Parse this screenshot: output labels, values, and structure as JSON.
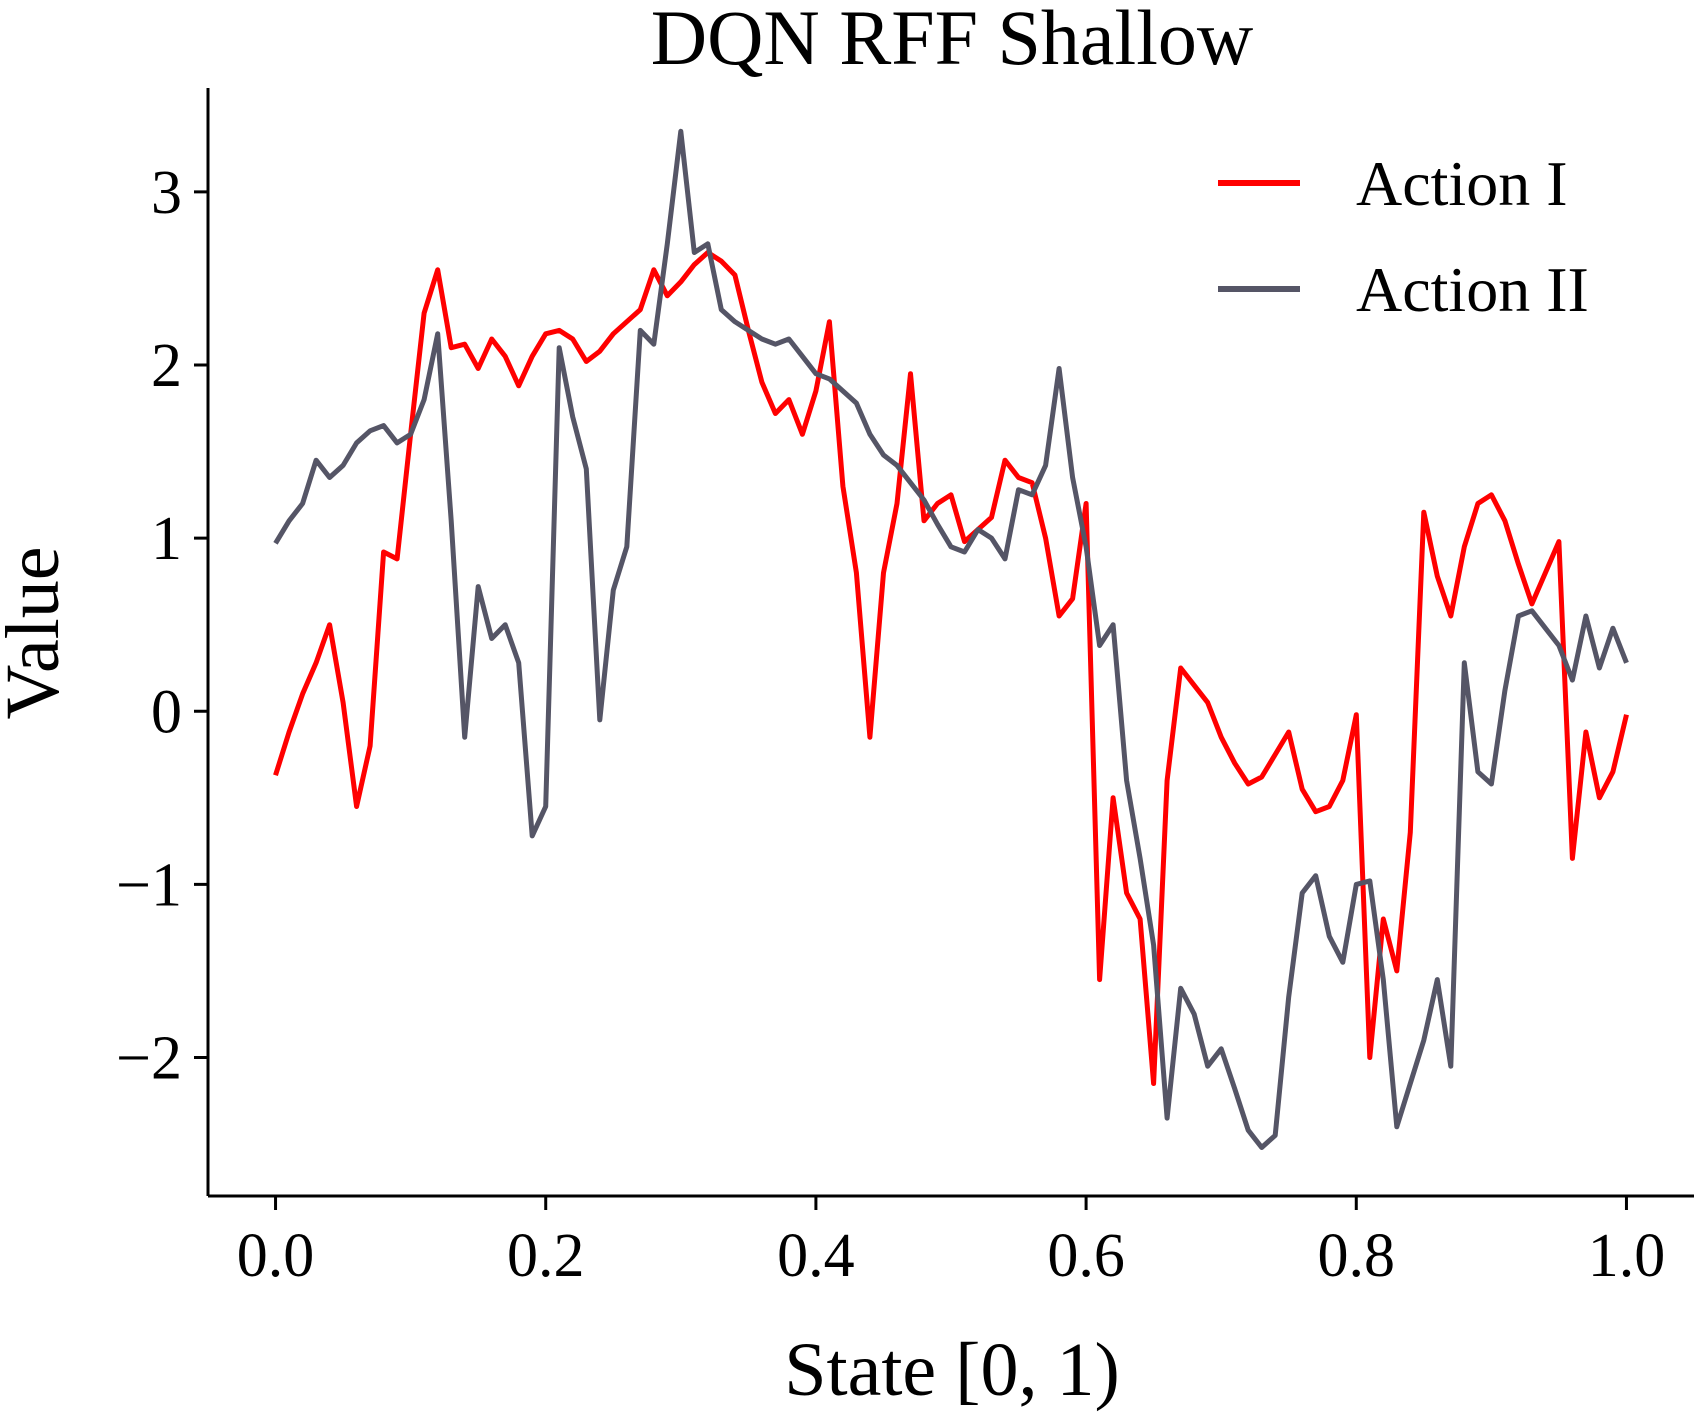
{
  "chart_data": {
    "type": "line",
    "title": "DQN RFF Shallow",
    "xlabel": "State [0, 1)",
    "ylabel": "Value",
    "xlim": [
      -0.05,
      1.05
    ],
    "ylim": [
      -2.8,
      3.6
    ],
    "x_ticks": [
      0.0,
      0.2,
      0.4,
      0.6,
      0.8,
      1.0
    ],
    "x_tick_labels": [
      "0.0",
      "0.2",
      "0.4",
      "0.6",
      "0.8",
      "1.0"
    ],
    "y_ticks": [
      -2,
      -1,
      0,
      1,
      2,
      3
    ],
    "y_tick_labels": [
      "−2",
      "−1",
      "0",
      "1",
      "2",
      "3"
    ],
    "grid": false,
    "legend_position": "top-right",
    "x": [
      0.0,
      0.01,
      0.02,
      0.03,
      0.04,
      0.05,
      0.06,
      0.07,
      0.08,
      0.09,
      0.1,
      0.11,
      0.12,
      0.13,
      0.14,
      0.15,
      0.16,
      0.17,
      0.18,
      0.19,
      0.2,
      0.21,
      0.22,
      0.23,
      0.24,
      0.25,
      0.26,
      0.27,
      0.28,
      0.29,
      0.3,
      0.31,
      0.32,
      0.33,
      0.34,
      0.35,
      0.36,
      0.37,
      0.38,
      0.39,
      0.4,
      0.41,
      0.42,
      0.43,
      0.44,
      0.45,
      0.46,
      0.47,
      0.48,
      0.49,
      0.5,
      0.51,
      0.52,
      0.53,
      0.54,
      0.55,
      0.56,
      0.57,
      0.58,
      0.59,
      0.6,
      0.61,
      0.62,
      0.63,
      0.64,
      0.65,
      0.66,
      0.67,
      0.68,
      0.69,
      0.7,
      0.71,
      0.72,
      0.73,
      0.74,
      0.75,
      0.76,
      0.77,
      0.78,
      0.79,
      0.8,
      0.81,
      0.82,
      0.83,
      0.84,
      0.85,
      0.86,
      0.87,
      0.88,
      0.89,
      0.9,
      0.91,
      0.92,
      0.93,
      0.94,
      0.95,
      0.96,
      0.97,
      0.98,
      0.99,
      1.0
    ],
    "series": [
      {
        "name": "Action I",
        "color": "#ff0000",
        "values": [
          -0.37,
          -0.12,
          0.1,
          0.28,
          0.5,
          0.05,
          -0.55,
          -0.2,
          0.92,
          0.88,
          1.6,
          2.3,
          2.55,
          2.1,
          2.12,
          1.98,
          2.15,
          2.05,
          1.88,
          2.05,
          2.18,
          2.2,
          2.15,
          2.02,
          2.08,
          2.18,
          2.25,
          2.32,
          2.55,
          2.4,
          2.48,
          2.58,
          2.65,
          2.6,
          2.52,
          2.2,
          1.9,
          1.72,
          1.8,
          1.6,
          1.85,
          2.25,
          1.3,
          0.8,
          -0.15,
          0.8,
          1.2,
          1.95,
          1.1,
          1.2,
          1.25,
          0.98,
          1.05,
          1.12,
          1.45,
          1.35,
          1.32,
          1.0,
          0.55,
          0.65,
          1.2,
          -1.55,
          -0.5,
          -1.05,
          -1.2,
          -2.15,
          -0.4,
          0.25,
          0.15,
          0.05,
          -0.15,
          -0.3,
          -0.42,
          -0.38,
          -0.25,
          -0.12,
          -0.45,
          -0.58,
          -0.55,
          -0.4,
          -0.02,
          -2.0,
          -1.2,
          -1.5,
          -0.7,
          1.15,
          0.78,
          0.55,
          0.95,
          1.2,
          1.25,
          1.1,
          0.85,
          0.62,
          0.8,
          0.98,
          -0.85,
          -0.12,
          -0.5,
          -0.35,
          -0.02
        ]
      },
      {
        "name": "Action II",
        "color": "#555566",
        "values": [
          0.97,
          1.1,
          1.2,
          1.45,
          1.35,
          1.42,
          1.55,
          1.62,
          1.65,
          1.55,
          1.6,
          1.8,
          2.18,
          1.1,
          -0.15,
          0.72,
          0.42,
          0.5,
          0.28,
          -0.72,
          -0.55,
          2.1,
          1.7,
          1.4,
          -0.05,
          0.7,
          0.95,
          2.2,
          2.12,
          2.7,
          3.35,
          2.65,
          2.7,
          2.32,
          2.25,
          2.2,
          2.15,
          2.12,
          2.15,
          2.05,
          1.95,
          1.92,
          1.85,
          1.78,
          1.6,
          1.48,
          1.42,
          1.32,
          1.22,
          1.08,
          0.95,
          0.92,
          1.05,
          1.0,
          0.88,
          1.28,
          1.25,
          1.42,
          1.98,
          1.35,
          0.95,
          0.38,
          0.5,
          -0.4,
          -0.85,
          -1.35,
          -2.35,
          -1.6,
          -1.75,
          -2.05,
          -1.95,
          -2.18,
          -2.42,
          -2.52,
          -2.45,
          -1.65,
          -1.05,
          -0.95,
          -1.3,
          -1.45,
          -1.0,
          -0.98,
          -1.55,
          -2.4,
          -2.15,
          -1.9,
          -1.55,
          -2.05,
          0.28,
          -0.35,
          -0.42,
          0.12,
          0.55,
          0.58,
          0.48,
          0.38,
          0.18,
          0.55,
          0.25,
          0.48,
          0.28
        ]
      }
    ]
  }
}
